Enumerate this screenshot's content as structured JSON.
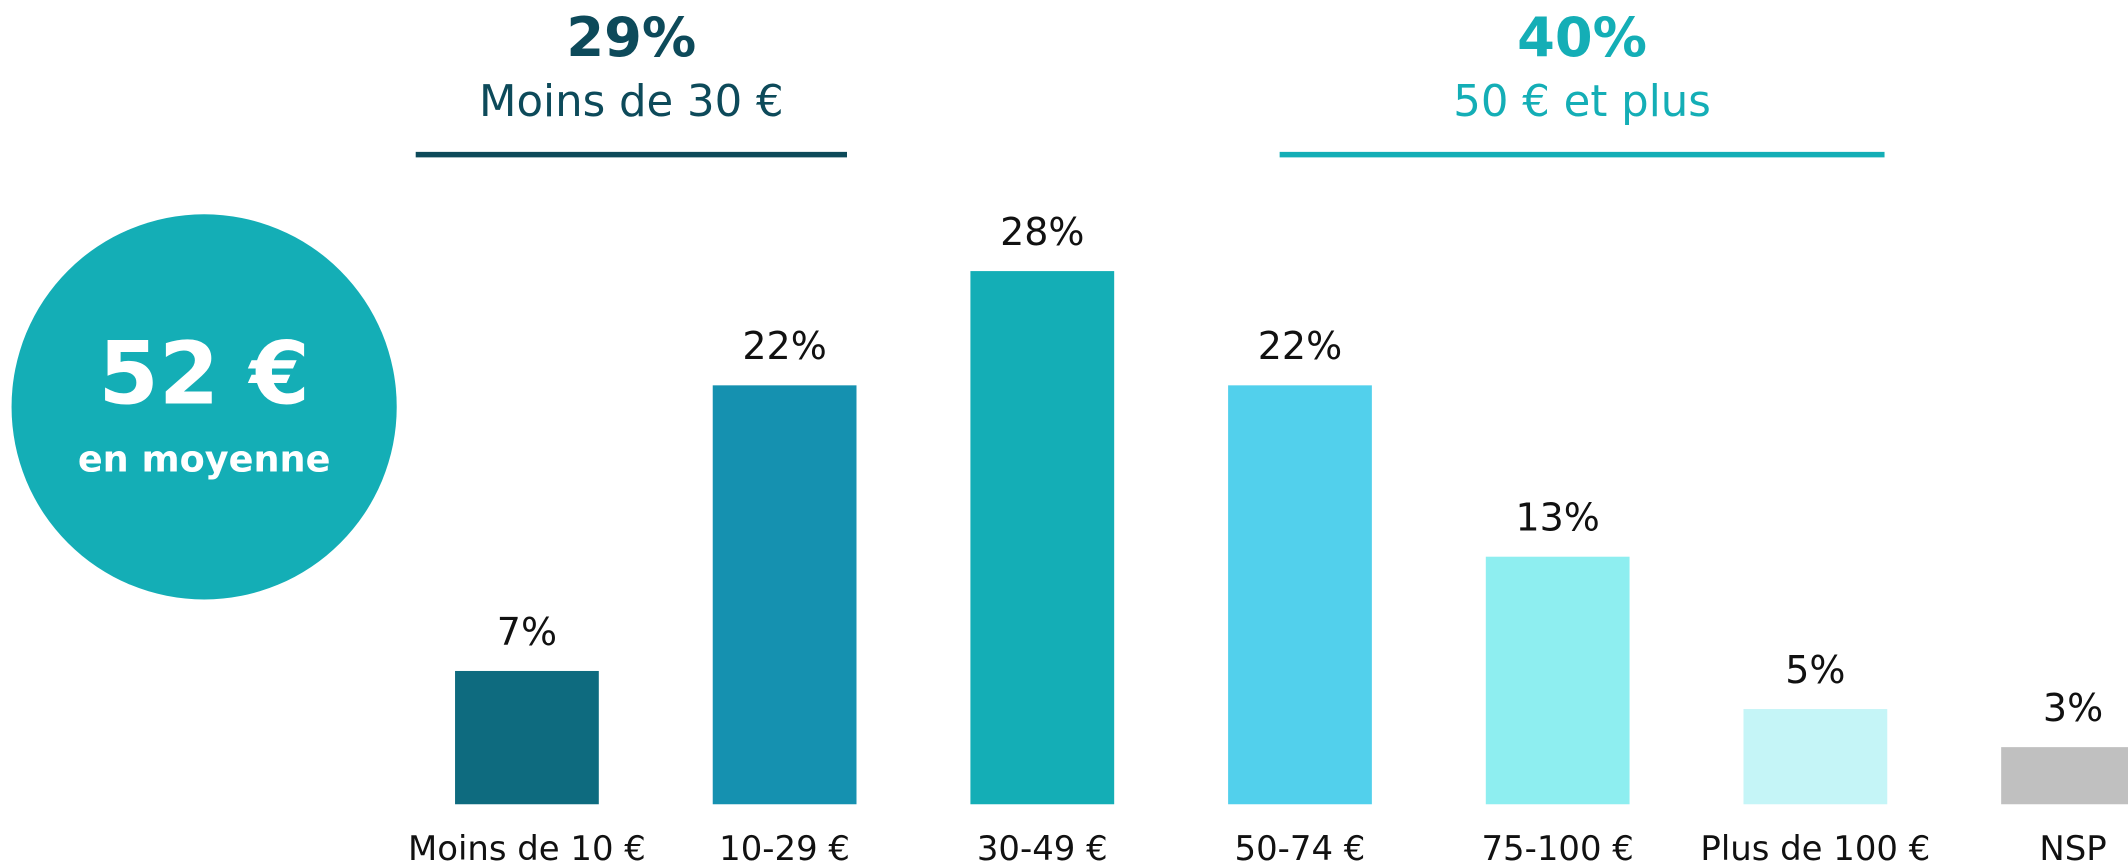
{
  "chart_data": {
    "type": "bar",
    "categories": [
      "Moins de 10 €",
      "10-29 €",
      "30-49 €",
      "50-74 €",
      "75-100 €",
      "Plus de 100 €",
      "NSP"
    ],
    "values": [
      7,
      22,
      28,
      22,
      13,
      5,
      3
    ],
    "value_labels": [
      "7%",
      "22%",
      "28%",
      "22%",
      "13%",
      "5%",
      "3%"
    ],
    "colors": [
      "#0e6b7f",
      "#1591b0",
      "#14aeb6",
      "#52d0ec",
      "#8eeef0",
      "#c5f5f7",
      "#c0c0c0"
    ],
    "groups": [
      {
        "value_label": "29%",
        "label": "Moins de 30 €",
        "color": "#0d4a5a"
      },
      {
        "value_label": "40%",
        "label": "50 € et plus",
        "color": "#14aeb6"
      }
    ],
    "highlight": {
      "value_label": "52 €",
      "label": "en moyenne",
      "color": "#14aeb6"
    }
  }
}
